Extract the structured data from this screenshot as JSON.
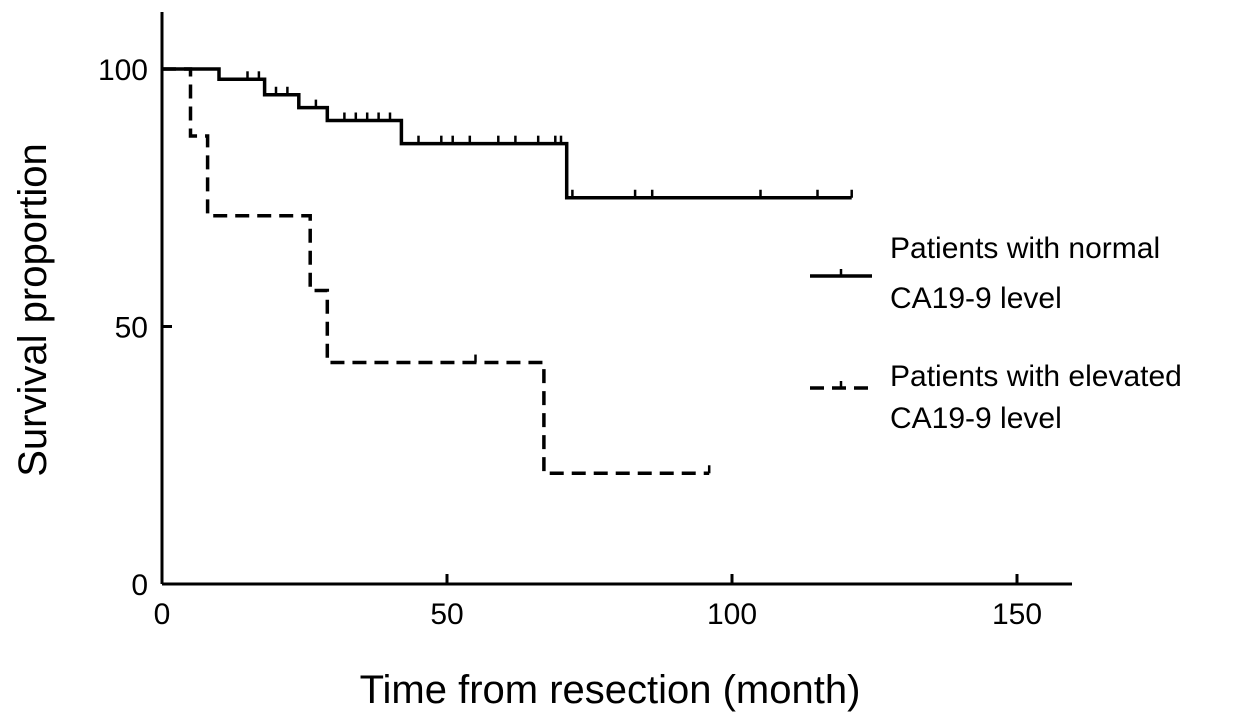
{
  "chart_data": {
    "type": "line",
    "subtype": "kaplan-meier",
    "title": "",
    "xlabel": "Time from resection (month)",
    "ylabel": "Survival proportion",
    "xlim": [
      0,
      160
    ],
    "ylim": [
      0,
      110
    ],
    "xticks": [
      0,
      50,
      100,
      150
    ],
    "yticks": [
      0,
      50,
      100
    ],
    "legend_position": "right",
    "series": [
      {
        "name": "Patients with normal CA19-9 level",
        "style": "solid",
        "steps": [
          [
            0,
            100
          ],
          [
            10,
            100
          ],
          [
            10,
            98
          ],
          [
            18,
            98
          ],
          [
            18,
            95
          ],
          [
            24,
            95
          ],
          [
            24,
            92.5
          ],
          [
            29,
            92.5
          ],
          [
            29,
            90
          ],
          [
            42,
            90
          ],
          [
            42,
            85.5
          ],
          [
            71,
            85.5
          ],
          [
            71,
            75
          ],
          [
            121,
            75
          ]
        ],
        "censored": [
          [
            15,
            98
          ],
          [
            17,
            98
          ],
          [
            20,
            95
          ],
          [
            22,
            95
          ],
          [
            27,
            92.5
          ],
          [
            32,
            90
          ],
          [
            34,
            90
          ],
          [
            36,
            90
          ],
          [
            38,
            90
          ],
          [
            40,
            90
          ],
          [
            45,
            85.5
          ],
          [
            49,
            85.5
          ],
          [
            51,
            85.5
          ],
          [
            54,
            85.5
          ],
          [
            59,
            85.5
          ],
          [
            62,
            85.5
          ],
          [
            66,
            85.5
          ],
          [
            69,
            85.5
          ],
          [
            70,
            85.5
          ],
          [
            72,
            75
          ],
          [
            83,
            75
          ],
          [
            86,
            75
          ],
          [
            105,
            75
          ],
          [
            115,
            75
          ],
          [
            121,
            75
          ]
        ]
      },
      {
        "name": "Patients with elevated CA19-9 level",
        "style": "dashed",
        "steps": [
          [
            0,
            100
          ],
          [
            5,
            100
          ],
          [
            5,
            87
          ],
          [
            8,
            87
          ],
          [
            8,
            71.5
          ],
          [
            26,
            71.5
          ],
          [
            26,
            57
          ],
          [
            29,
            57
          ],
          [
            29,
            43
          ],
          [
            67,
            43
          ],
          [
            67,
            21.5
          ],
          [
            96,
            21.5
          ]
        ],
        "censored": [
          [
            55,
            43
          ],
          [
            96,
            21.5
          ]
        ]
      }
    ]
  }
}
